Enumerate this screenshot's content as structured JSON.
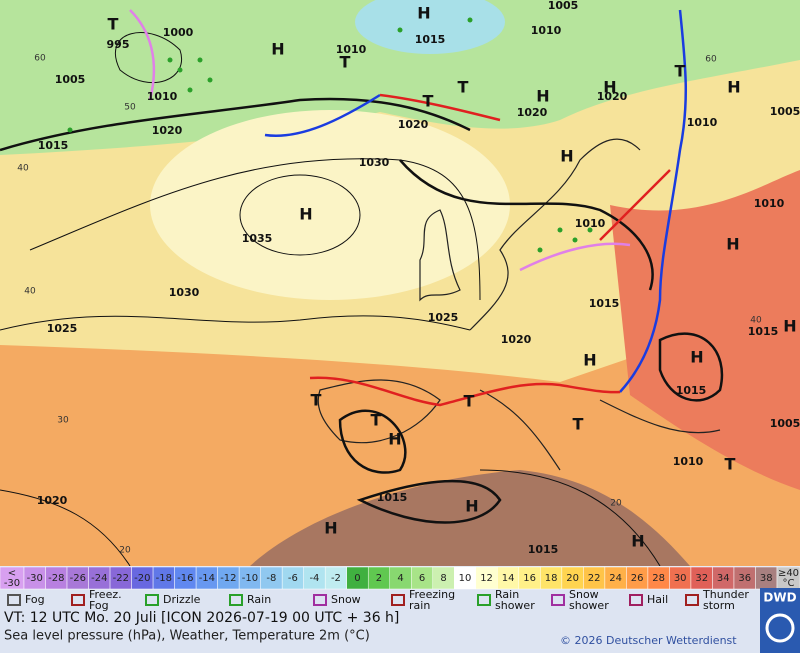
{
  "map": {
    "isobar_labels": [
      "995",
      "1000",
      "1005",
      "1010",
      "1020",
      "1015",
      "1030",
      "1035",
      "1030",
      "1025",
      "1025",
      "1020",
      "1015",
      "1015",
      "1010",
      "1015",
      "1015",
      "1020",
      "1010",
      "1015",
      "1020",
      "1020",
      "1020",
      "1010",
      "1010",
      "1005",
      "1010",
      "1010",
      "1015",
      "1005",
      "1005"
    ],
    "centers": [
      "H",
      "H",
      "H",
      "H",
      "H",
      "H",
      "H",
      "H",
      "H",
      "H",
      "H",
      "H",
      "H",
      "H",
      "H",
      "T",
      "T",
      "T",
      "T",
      "T",
      "T",
      "T",
      "T",
      "T",
      "T"
    ],
    "isotherm_labels": [
      "60",
      "50",
      "40",
      "40",
      "30",
      "20",
      "60",
      "40",
      "20"
    ]
  },
  "colorbar": {
    "cells": [
      {
        "lines": [
          "<",
          "-30"
        ],
        "color": "#d8a0f0"
      },
      {
        "label": "-30",
        "color": "#c890e8"
      },
      {
        "label": "-28",
        "color": "#b880e0"
      },
      {
        "label": "-26",
        "color": "#a878d8"
      },
      {
        "label": "-24",
        "color": "#9870d8"
      },
      {
        "label": "-22",
        "color": "#8868d8"
      },
      {
        "label": "-20",
        "color": "#6868e0"
      },
      {
        "label": "-18",
        "color": "#6078e8"
      },
      {
        "label": "-16",
        "color": "#6088f0"
      },
      {
        "label": "-14",
        "color": "#6898f0"
      },
      {
        "label": "-12",
        "color": "#70a8f0"
      },
      {
        "label": "-10",
        "color": "#80b8f0"
      },
      {
        "label": "-8",
        "color": "#90c8f0"
      },
      {
        "label": "-6",
        "color": "#a0d8f0"
      },
      {
        "label": "-4",
        "color": "#b0e4f0"
      },
      {
        "label": "-2",
        "color": "#c0ecf0"
      },
      {
        "label": "0",
        "color": "#40b040"
      },
      {
        "label": "2",
        "color": "#60c850"
      },
      {
        "label": "4",
        "color": "#88d870"
      },
      {
        "label": "6",
        "color": "#a8e488"
      },
      {
        "label": "8",
        "color": "#ccf0b0"
      },
      {
        "label": "10",
        "color": "#ffffff"
      },
      {
        "label": "12",
        "color": "#ffffd0"
      },
      {
        "label": "14",
        "color": "#fff8a8"
      },
      {
        "label": "16",
        "color": "#fff088"
      },
      {
        "label": "18",
        "color": "#ffe468"
      },
      {
        "label": "20",
        "color": "#ffd450"
      },
      {
        "label": "22",
        "color": "#ffc448"
      },
      {
        "label": "24",
        "color": "#ffb048"
      },
      {
        "label": "26",
        "color": "#ff9c48"
      },
      {
        "label": "28",
        "color": "#ff8848"
      },
      {
        "label": "30",
        "color": "#f07050"
      },
      {
        "label": "32",
        "color": "#e06058"
      },
      {
        "label": "34",
        "color": "#d06868"
      },
      {
        "label": "36",
        "color": "#c07070"
      },
      {
        "label": "38",
        "color": "#a88080"
      },
      {
        "lines": [
          "≥40",
          "°C"
        ],
        "color": "#c8c8c8"
      }
    ]
  },
  "legend": {
    "items": [
      {
        "lines": [
          "Fog"
        ]
      },
      {
        "lines": [
          "Freez.",
          "Fog"
        ]
      },
      {
        "lines": [
          "Drizzle"
        ]
      },
      {
        "lines": [
          "Rain"
        ]
      },
      {
        "lines": [
          "Snow"
        ]
      },
      {
        "lines": [
          "Freezing",
          "rain"
        ]
      },
      {
        "lines": [
          "Rain",
          "shower"
        ]
      },
      {
        "lines": [
          "Snow",
          "shower"
        ]
      },
      {
        "lines": [
          "Hail"
        ]
      },
      {
        "lines": [
          "Thunder",
          "storm"
        ]
      }
    ]
  },
  "footer": {
    "valid_time": "VT: 12 UTC Mo.  20 Juli [ICON 2026-07-19  00 UTC + 36 h]",
    "description": "Sea level pressure (hPa), Weather, Temperature 2m (°C)",
    "copyright": "© 2026 Deutscher Wetterdienst",
    "logo": "DWD"
  }
}
